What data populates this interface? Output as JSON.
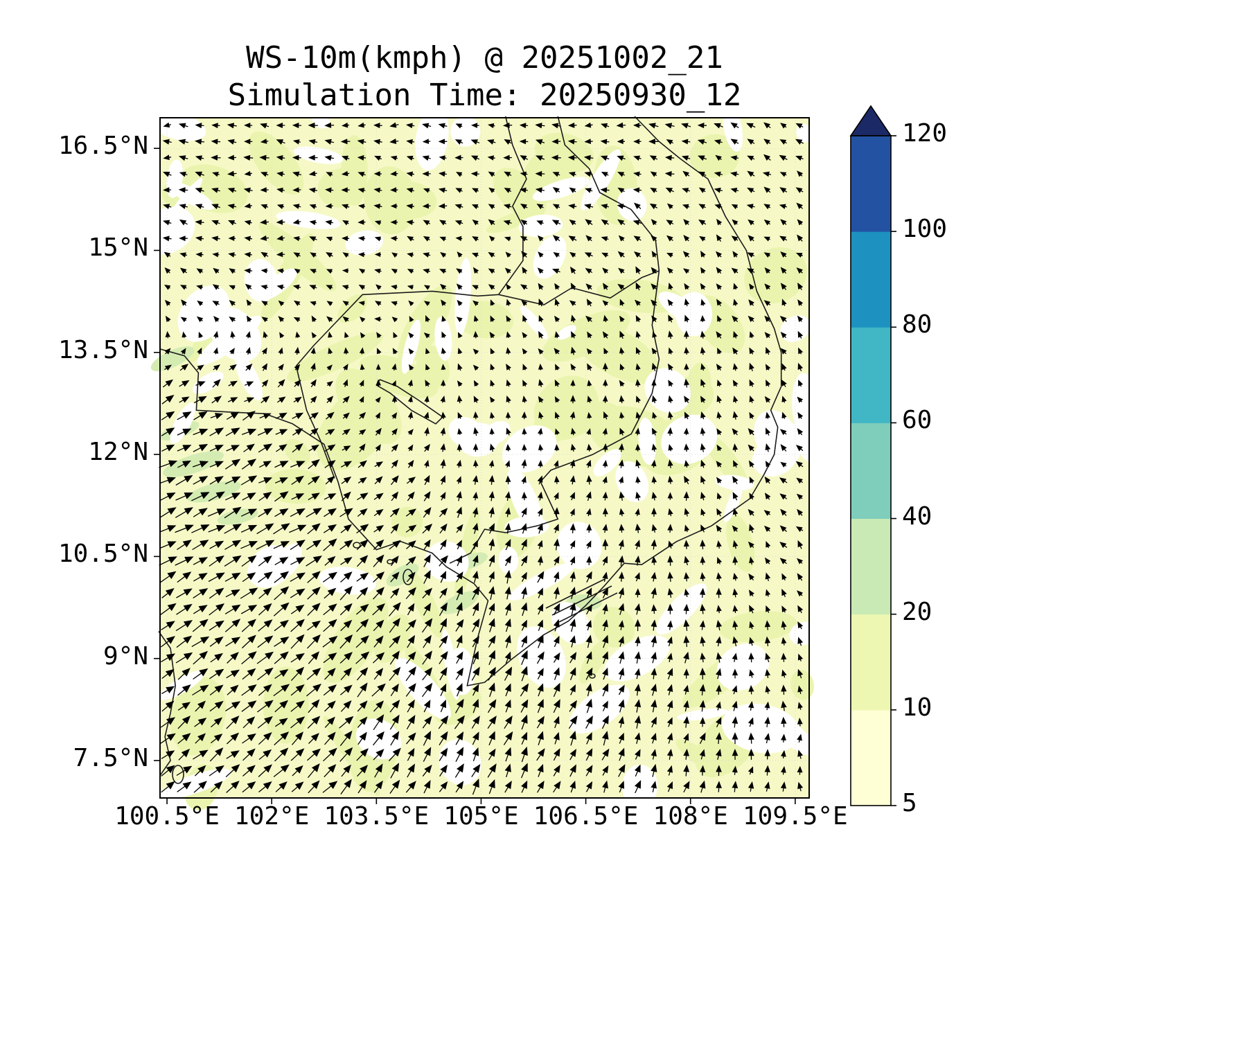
{
  "title": {
    "line1": "WS-10m(kmph) @ 20251002_21",
    "line2": "Simulation Time: 20250930_12"
  },
  "axes": {
    "lon": {
      "min": 100.4,
      "max": 109.7,
      "tick_values": [
        100.5,
        102,
        103.5,
        105,
        106.5,
        108,
        109.5
      ],
      "tick_labels": [
        "100.5°E",
        "102°E",
        "103.5°E",
        "105°E",
        "106.5°E",
        "108°E",
        "109.5°E"
      ]
    },
    "lat": {
      "min": 6.95,
      "max": 16.95,
      "tick_values": [
        16.5,
        15,
        13.5,
        12,
        10.5,
        9,
        7.5
      ],
      "tick_labels": [
        "16.5°N",
        "15°N",
        "13.5°N",
        "12°N",
        "10.5°N",
        "9°N",
        "7.5°N"
      ]
    }
  },
  "colorbar": {
    "units": "kmph",
    "levels": [
      5,
      10,
      20,
      40,
      60,
      80,
      100,
      120
    ],
    "tick_labels": [
      "5",
      "10",
      "20",
      "40",
      "60",
      "80",
      "100",
      "120"
    ],
    "colors": [
      "#ffffd5",
      "#edf7b1",
      "#c9eab4",
      "#7fcdbb",
      "#41b6c4",
      "#1d91c0",
      "#2352a3"
    ],
    "over_color": "#1b2a66",
    "background_fill": "#f6f9c6",
    "land_sea_outline": "#1a1a1a"
  },
  "chart_data": {
    "type": "quiver",
    "variable": "WS-10m",
    "units": "kmph",
    "valid_time": "20251002_21",
    "simulation_time": "20250930_12",
    "extent": {
      "lon": [
        100.4,
        109.7
      ],
      "lat": [
        6.95,
        16.95
      ]
    },
    "shading_levels": [
      5,
      10,
      20,
      40,
      60,
      80,
      100,
      120
    ],
    "shading_note": "filled wind-speed contours, mostly 5-20 kmph pale yellow-green with white patches below 5",
    "grid_lons": [
      100.5,
      102,
      103.5,
      105,
      106.5,
      108,
      109.5
    ],
    "grid_lats": [
      17,
      15.5,
      14,
      12.5,
      11,
      9.5,
      8
    ],
    "u": [
      [
        -5,
        -5,
        -4,
        -4,
        -5,
        -5,
        -4
      ],
      [
        -4,
        -4,
        -3,
        -3,
        -4,
        -3,
        -3
      ],
      [
        -2,
        -2,
        -2,
        -1,
        -2,
        -1,
        -2
      ],
      [
        11,
        9,
        2,
        -1,
        0,
        -1,
        -2
      ],
      [
        14,
        13,
        8,
        2,
        1,
        -1,
        -3
      ],
      [
        12,
        12,
        9,
        4,
        3,
        0,
        -2
      ],
      [
        10,
        11,
        8,
        5,
        4,
        2,
        0
      ]
    ],
    "v": [
      [
        0,
        1,
        0,
        1,
        0,
        1,
        2
      ],
      [
        1,
        0,
        1,
        1,
        2,
        2,
        2
      ],
      [
        2,
        2,
        1,
        2,
        3,
        3,
        3
      ],
      [
        5,
        5,
        3,
        3,
        3,
        4,
        3
      ],
      [
        7,
        7,
        6,
        6,
        5,
        4,
        3
      ],
      [
        8,
        9,
        10,
        10,
        8,
        6,
        4
      ],
      [
        8,
        9,
        10,
        10,
        9,
        7,
        5
      ]
    ]
  }
}
